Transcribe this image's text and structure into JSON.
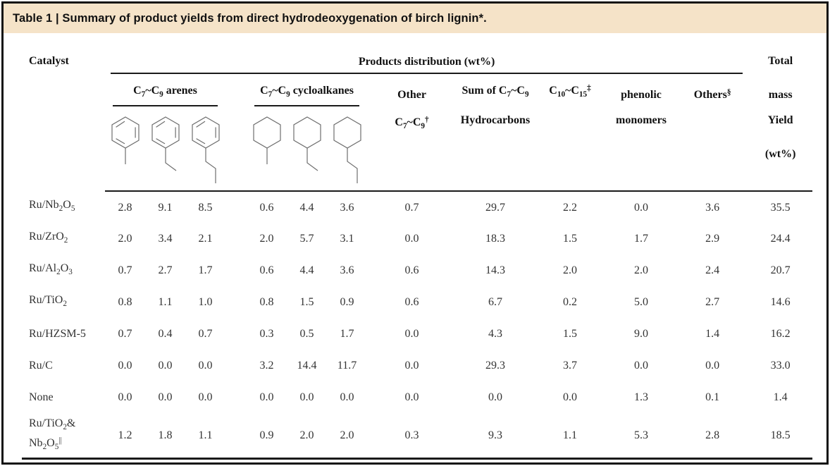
{
  "title": "Table 1 | Summary of product yields from direct hydrodeoxygenation of birch lignin*.",
  "colors": {
    "title_bar_bg": "#f5e3c8",
    "frame_border": "#111111",
    "rule": "#1a1a1a",
    "structure_stroke": "#6e6e6e"
  },
  "header": {
    "catalyst": "Catalyst",
    "products_distribution": "Products distribution (wt%)",
    "arenes_group": "C_{7}~C_{9} arenes",
    "cycloalkanes_group": "C_{7}~C_{9} cycloalkanes",
    "other_line1": "Other",
    "other_line2": "C_{7}~C_{9}^{†}",
    "sum_line1": "Sum of C_{7}~C_{9}",
    "sum_line2": "Hydrocarbons",
    "c10_c15": "C_{10}~C_{15}^{‡}",
    "phenolic_line1": "phenolic",
    "phenolic_line2": "monomers",
    "others": "Others^{§}",
    "total_lines": [
      "Total",
      "mass",
      "Yield",
      "(wt%)"
    ],
    "structure_icons": [
      "toluene-structure-icon",
      "ethylbenzene-structure-icon",
      "propylbenzene-structure-icon",
      "methylcyclohexane-structure-icon",
      "ethylcyclohexane-structure-icon",
      "propylcyclohexane-structure-icon"
    ]
  },
  "rows": [
    {
      "catalyst": "Ru/Nb_{2}O_{5}",
      "values": [
        "2.8",
        "9.1",
        "8.5",
        "0.6",
        "4.4",
        "3.6",
        "0.7",
        "29.7",
        "2.2",
        "0.0",
        "3.6",
        "35.5"
      ]
    },
    {
      "catalyst": "Ru/ZrO_{2}",
      "values": [
        "2.0",
        "3.4",
        "2.1",
        "2.0",
        "5.7",
        "3.1",
        "0.0",
        "18.3",
        "1.5",
        "1.7",
        "2.9",
        "24.4"
      ]
    },
    {
      "catalyst": "Ru/Al_{2}O_{3}",
      "values": [
        "0.7",
        "2.7",
        "1.7",
        "0.6",
        "4.4",
        "3.6",
        "0.6",
        "14.3",
        "2.0",
        "2.0",
        "2.4",
        "20.7"
      ]
    },
    {
      "catalyst": "Ru/TiO_{2}",
      "values": [
        "0.8",
        "1.1",
        "1.0",
        "0.8",
        "1.5",
        "0.9",
        "0.6",
        "6.7",
        "0.2",
        "5.0",
        "2.7",
        "14.6"
      ]
    },
    {
      "catalyst": "Ru/HZSM-5",
      "values": [
        "0.7",
        "0.4",
        "0.7",
        "0.3",
        "0.5",
        "1.7",
        "0.0",
        "4.3",
        "1.5",
        "9.0",
        "1.4",
        "16.2"
      ]
    },
    {
      "catalyst": "Ru/C",
      "values": [
        "0.0",
        "0.0",
        "0.0",
        "3.2",
        "14.4",
        "11.7",
        "0.0",
        "29.3",
        "3.7",
        "0.0",
        "0.0",
        "33.0"
      ]
    },
    {
      "catalyst": "None",
      "values": [
        "0.0",
        "0.0",
        "0.0",
        "0.0",
        "0.0",
        "0.0",
        "0.0",
        "0.0",
        "0.0",
        "1.3",
        "0.1",
        "1.4"
      ]
    },
    {
      "catalyst_lines": [
        "Ru/TiO_{2}&",
        "Nb_{2}O_{5}^{||}"
      ],
      "values": [
        "1.2",
        "1.8",
        "1.1",
        "0.9",
        "2.0",
        "2.0",
        "0.3",
        "9.3",
        "1.1",
        "5.3",
        "2.8",
        "18.5"
      ]
    }
  ]
}
